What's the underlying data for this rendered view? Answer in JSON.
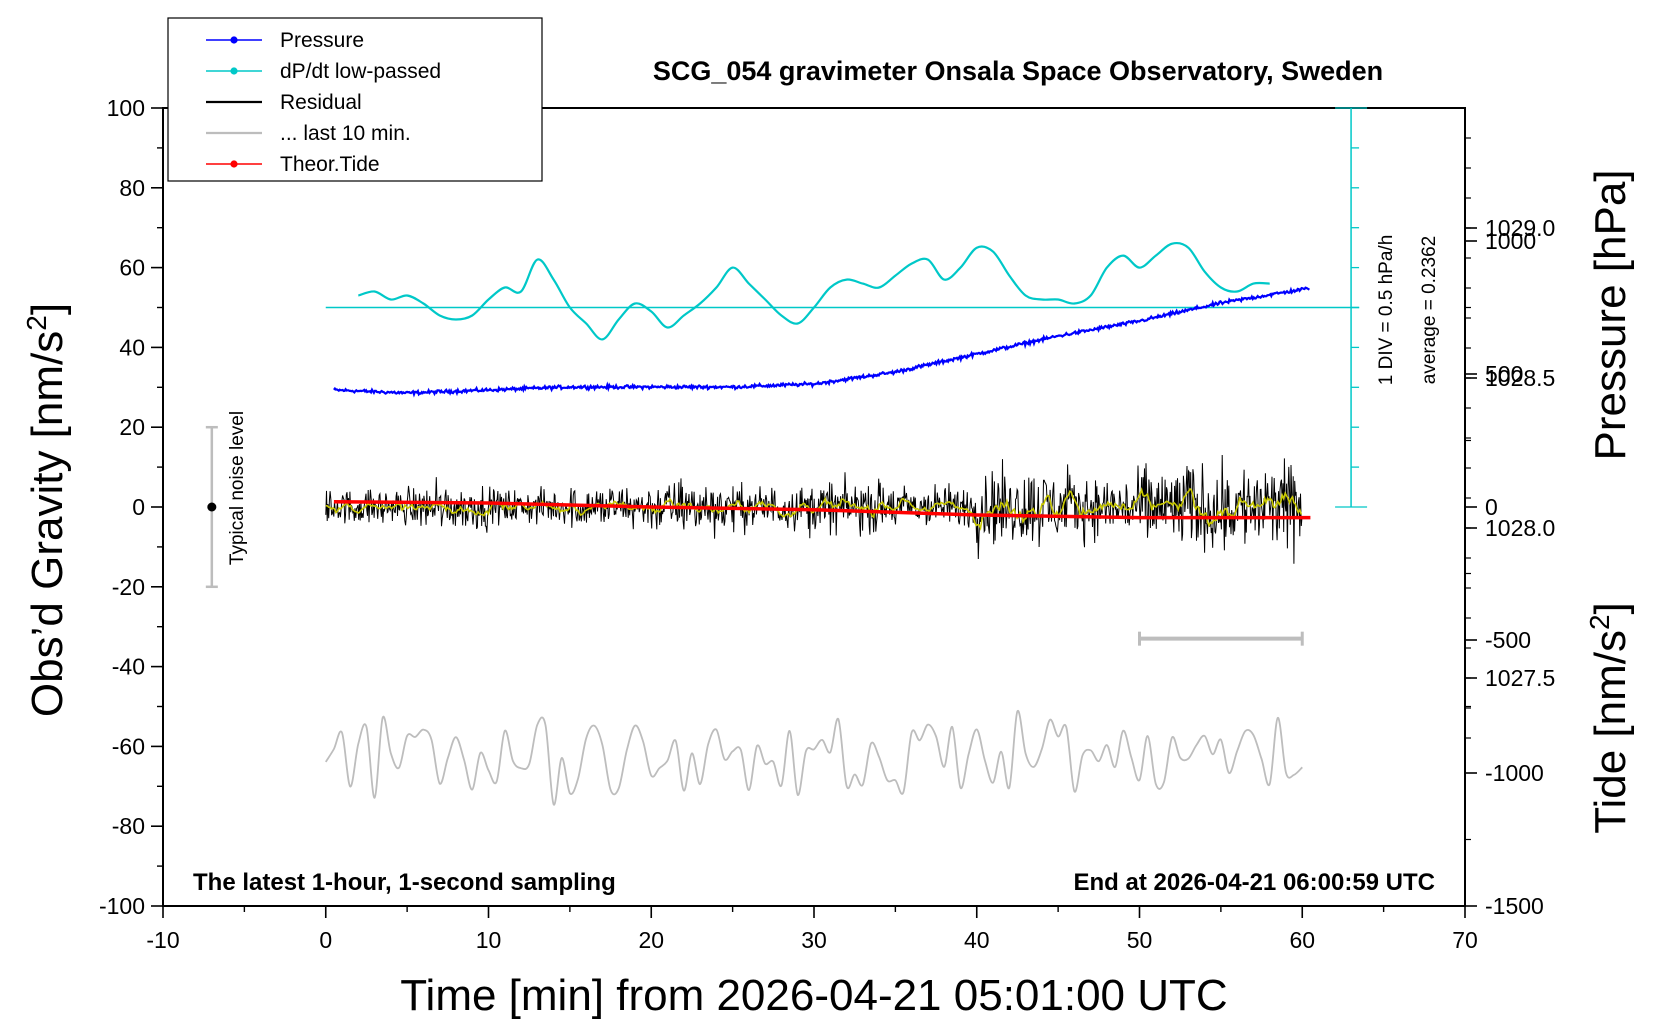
{
  "chart_data": {
    "type": "line",
    "title": "SCG_054 gravimeter Onsala Space Observatory, Sweden",
    "xlabel": "Time [min] from 2026-04-21 05:01:00 UTC",
    "ylabel_left": "Obs’d Gravity [nm/s",
    "ylabel_left_sup": "2",
    "ylabel_left_close": "]",
    "ylabel_right_pressure": "Pressure [hPa]",
    "ylabel_right_tide": "Tide [nm/s",
    "ylabel_right_tide_sup": "2",
    "ylabel_right_tide_close": "]",
    "xlim": [
      -10,
      70
    ],
    "ylim": [
      -100,
      100
    ],
    "x_ticks": [
      "-10",
      "0",
      "10",
      "20",
      "30",
      "40",
      "50",
      "60",
      "70"
    ],
    "y_ticks": [
      "100",
      "80",
      "60",
      "40",
      "20",
      "0",
      "-20",
      "-40",
      "-60",
      "-80",
      "-100"
    ],
    "pressure_axis": {
      "range": [
        1026.74,
        1029.4
      ],
      "ticks": [
        "1029.0",
        "1028.5",
        "1028.0",
        "1027.5"
      ]
    },
    "tide_axis": {
      "range": [
        -1500,
        1500
      ],
      "ticks": [
        "1000",
        "500",
        "0",
        "-500",
        "-1000",
        "-1500"
      ]
    },
    "legend": [
      {
        "label": "Pressure",
        "color": "#0000ff",
        "marker": true
      },
      {
        "label": "dP/dt low-passed",
        "color": "#00c8c8",
        "marker": true
      },
      {
        "label": "Residual",
        "color": "#000000",
        "marker": false
      },
      {
        "label": "... last 10 min.",
        "color": "#bdbdbd",
        "marker": false
      },
      {
        "label": "Theor.Tide",
        "color": "#ff0000",
        "marker": true
      }
    ],
    "colors": {
      "pressure": "#0000ff",
      "dpdt": "#00c8c8",
      "residual": "#000000",
      "residual_smoothed": "#c8c800",
      "last10": "#bdbdbd",
      "tide": "#ff0000",
      "noise": "#bdbdbd"
    },
    "series": [
      {
        "name": "Pressure",
        "unit": "hPa",
        "x": [
          0.5,
          5,
          10,
          15,
          20,
          25,
          30,
          35,
          40,
          45,
          50,
          55,
          60.5
        ],
        "values": [
          1028.46,
          1028.45,
          1028.46,
          1028.47,
          1028.47,
          1028.47,
          1028.48,
          1028.52,
          1028.58,
          1028.64,
          1028.69,
          1028.75,
          1028.8
        ]
      },
      {
        "name": "dP/dt low-passed",
        "unit": "nm/s2 plot units",
        "x": [
          2,
          3,
          4,
          5,
          6,
          7,
          8,
          9,
          10,
          11,
          12,
          13,
          14,
          15,
          16,
          17,
          18,
          19,
          20,
          21,
          22,
          23,
          24,
          25,
          26,
          27,
          28,
          29,
          30,
          31,
          32,
          33,
          34,
          35,
          36,
          37,
          38,
          39,
          40,
          41,
          42,
          43,
          44,
          45,
          46,
          47,
          48,
          49,
          50,
          51,
          52,
          53,
          54,
          55,
          56,
          57,
          58
        ],
        "values": [
          53,
          54,
          52,
          53,
          51,
          48,
          47,
          48,
          52,
          55,
          54,
          62,
          57,
          50,
          46,
          42,
          47,
          51,
          49,
          45,
          48,
          51,
          55,
          60,
          56,
          52,
          48,
          46,
          50,
          55,
          57,
          56,
          55,
          58,
          61,
          62,
          57,
          60,
          65,
          64,
          58,
          53,
          52,
          52,
          51,
          53,
          60,
          63,
          60,
          63,
          66,
          65,
          59,
          55,
          54,
          56,
          56
        ]
      },
      {
        "name": "Residual",
        "unit": "nm/s2",
        "x_range": [
          0,
          60
        ],
        "amplitude_by_segment": [
          4,
          5,
          4,
          5,
          6,
          5,
          6,
          5,
          9,
          7,
          10,
          10
        ]
      },
      {
        "name": "... last 10 min.",
        "unit": "nm/s2 (offset -60)",
        "x_range": [
          0,
          60
        ],
        "baseline": -62,
        "amplitude": 8
      },
      {
        "name": "Theor.Tide",
        "unit": "nm/s2",
        "x": [
          0.5,
          10,
          20,
          30,
          40,
          50,
          60.5
        ],
        "values": [
          20,
          15,
          0,
          -10,
          -30,
          -40,
          -40
        ]
      }
    ],
    "annotations": {
      "noise_label": "Typical noise level",
      "noise_range": [
        -20,
        20
      ],
      "noise_x": -7,
      "div_label": "1 DIV = 0.5 hPa/h",
      "average_label": "average = 0.2362",
      "dpdt_baseline": 50,
      "dpdt_scale_x": 63,
      "dpdt_scale_range": [
        0,
        100
      ],
      "last10_bar": [
        50,
        60
      ],
      "last10_bar_y": -33,
      "bottom_left": "The latest 1-hour, 1-second sampling",
      "bottom_right": "End at 2026-04-21 06:00:59 UTC"
    }
  }
}
